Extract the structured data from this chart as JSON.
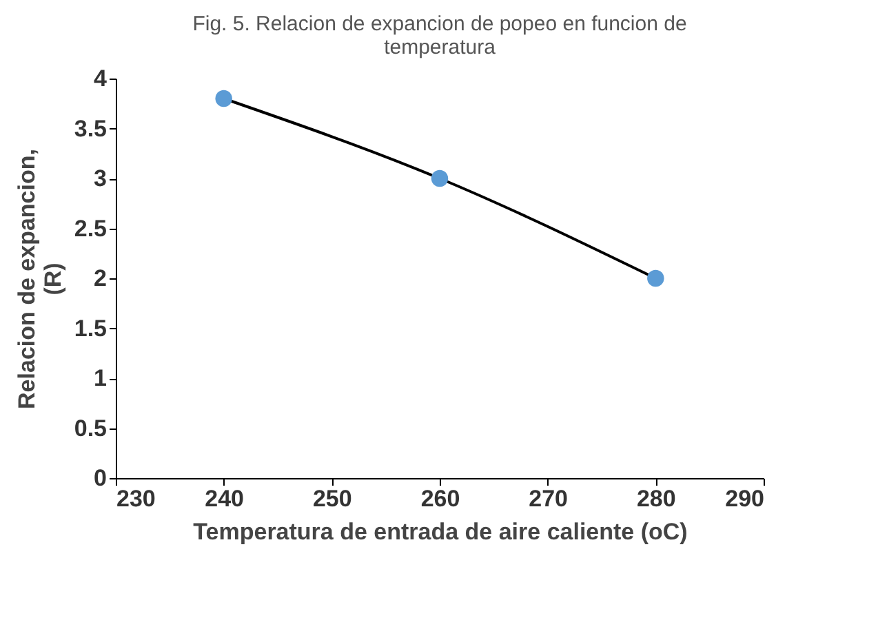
{
  "chart_data": {
    "type": "line",
    "title": "Fig. 5. Relacion de expancion de popeo en funcion de temperatura",
    "xlabel": "Temperatura de entrada de aire caliente (oC)",
    "ylabel": "Relacion de expancion, (R)",
    "x": [
      240,
      260,
      280
    ],
    "series": [
      {
        "color": "#000000",
        "values": [
          3.8,
          3.0,
          2.0
        ]
      },
      {
        "type": "scatter",
        "color": "#5b9bd5",
        "values": [
          3.8,
          3.0,
          2.0
        ],
        "marker": "circle"
      }
    ],
    "xlim": [
      230,
      290
    ],
    "xticks": [
      230,
      240,
      250,
      260,
      270,
      280,
      290
    ],
    "ylim": [
      0,
      4
    ],
    "yticks": [
      0,
      0.5,
      1,
      1.5,
      2,
      2.5,
      3,
      3.5,
      4
    ],
    "grid": false
  }
}
